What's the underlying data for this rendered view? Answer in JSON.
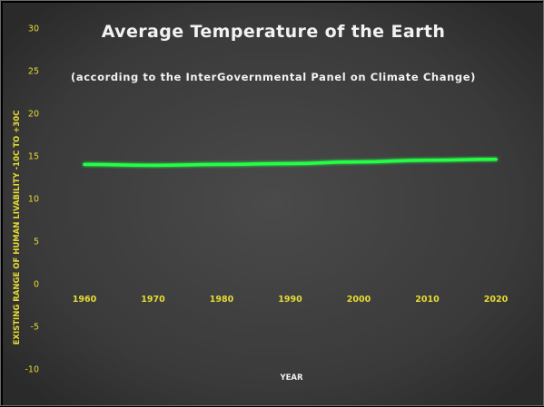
{
  "chart_data": {
    "type": "line",
    "title": "Average Temperature of the Earth",
    "subtitle": "(according to the InterGovernmental Panel on Climate Change)",
    "xlabel": "YEAR",
    "ylabel": "EXISTING RANGE OF HUMAN LIVABILITY -10C  TO +30C",
    "ylim": [
      -10,
      30
    ],
    "yticks": [
      30,
      25,
      20,
      15,
      10,
      5,
      0,
      -5,
      -10
    ],
    "categories": [
      "1960",
      "1970",
      "1980",
      "1990",
      "2000",
      "2010",
      "2020"
    ],
    "series": [
      {
        "values": [
          14.0,
          13.9,
          14.0,
          14.1,
          14.3,
          14.5,
          14.6
        ],
        "color": "#22ff44"
      }
    ],
    "grid": false,
    "legend": "none"
  },
  "colors": {
    "background": "#3a3a3a",
    "tick_text": "#e6dc32",
    "title_text": "#f2f2f2",
    "line": "#22ff44"
  }
}
